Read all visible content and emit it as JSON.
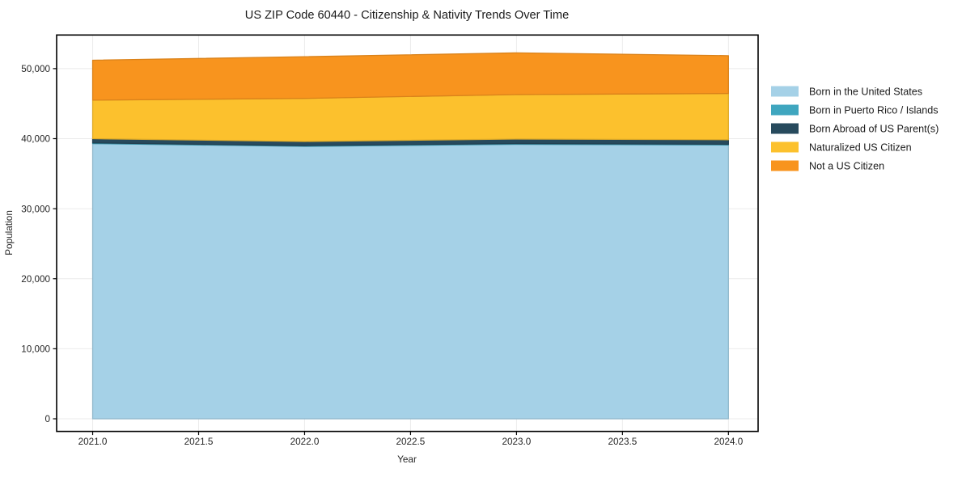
{
  "chart_data": {
    "type": "area",
    "stacked": true,
    "title": "US ZIP Code 60440 - Citizenship & Nativity Trends Over Time",
    "xlabel": "Year",
    "ylabel": "Population",
    "x": [
      2021,
      2022,
      2023,
      2024
    ],
    "series": [
      {
        "name": "Born in the United States",
        "color": "#a5d1e7",
        "values": [
          39300,
          38900,
          39200,
          39100
        ]
      },
      {
        "name": "Born in Puerto Rico / Islands",
        "color": "#3fa6bf",
        "values": [
          100,
          100,
          100,
          100
        ]
      },
      {
        "name": "Born Abroad of US Parent(s)",
        "color": "#274a5d",
        "values": [
          600,
          600,
          650,
          650
        ]
      },
      {
        "name": "Naturalized US Citizen",
        "color": "#fcc12d",
        "values": [
          5500,
          6150,
          6350,
          6600
        ]
      },
      {
        "name": "Not a US Citizen",
        "color": "#f8941e",
        "values": [
          5700,
          5950,
          5950,
          5400
        ]
      }
    ],
    "stacked_totals": [
      51200,
      51700,
      52250,
      51850
    ],
    "xticks": [
      2021.0,
      2021.5,
      2022.0,
      2022.5,
      2023.0,
      2023.5,
      2024.0
    ],
    "xtick_labels": [
      "2021.0",
      "2021.5",
      "2022.0",
      "2022.5",
      "2023.0",
      "2023.5",
      "2024.0"
    ],
    "yticks": [
      0,
      10000,
      20000,
      30000,
      40000,
      50000
    ],
    "ytick_labels": [
      "0",
      "10,000",
      "20,000",
      "30,000",
      "40,000",
      "50,000"
    ],
    "xlim": [
      2020.83,
      2024.14
    ],
    "ylim": [
      -1800,
      54800
    ],
    "grid": true,
    "grid_color": "#ebebeb",
    "axis_color": "#000000",
    "legend_position": "right"
  }
}
